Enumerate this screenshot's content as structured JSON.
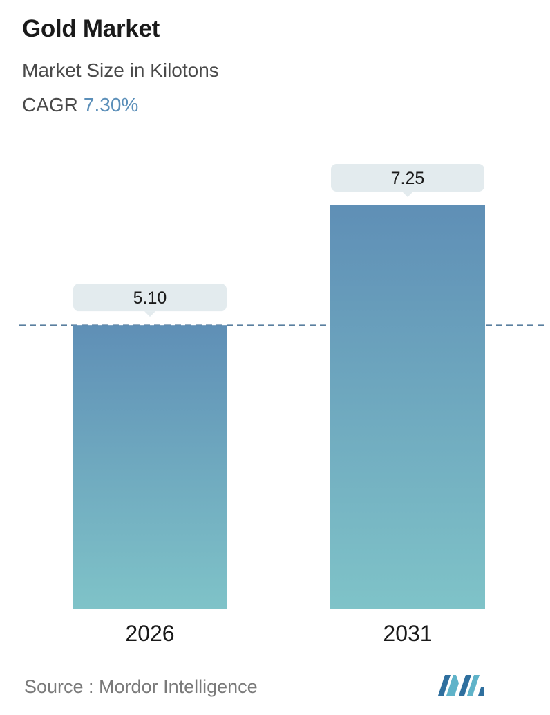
{
  "header": {
    "title": "Gold Market",
    "subtitle": "Market Size in Kilotons",
    "cagr_label": "CAGR",
    "cagr_value": "7.30%"
  },
  "footer": {
    "source_text": "Source :  Mordor Intelligence",
    "logo_icon": "mordor-intelligence-logo-icon"
  },
  "colors": {
    "bar_top": "#5f8fb6",
    "bar_bottom": "#7fc3c8",
    "label_bg": "#e3ebee",
    "dashed_line": "#5a7f9f",
    "accent": "#5b8fb9"
  },
  "chart_data": {
    "type": "bar",
    "categories": [
      "2026",
      "2031"
    ],
    "values": [
      5.1,
      7.25
    ],
    "value_labels": [
      "5.10",
      "7.25"
    ],
    "title": "Gold Market",
    "subtitle": "Market Size in Kilotons",
    "xlabel": "",
    "ylabel": "",
    "ylim": [
      0,
      7.25
    ],
    "grid": false,
    "reference_line": {
      "value": 5.1,
      "style": "dashed"
    }
  }
}
